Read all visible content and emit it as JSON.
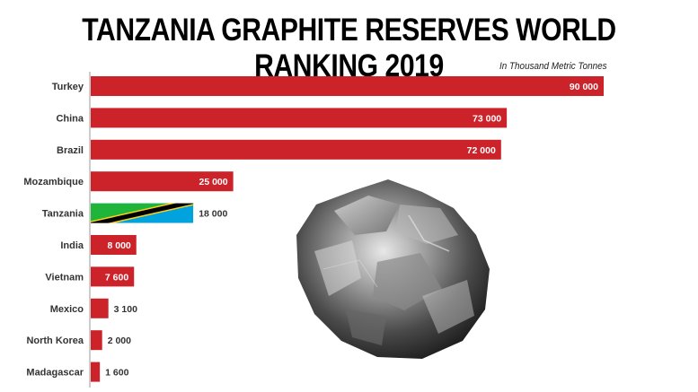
{
  "chart_data": {
    "type": "bar",
    "orientation": "horizontal",
    "title": "TANZANIA GRAPHITE RESERVES WORLD RANKING 2019",
    "unit_label": "In Thousand Metric Tonnes",
    "categories": [
      "Turkey",
      "China",
      "Brazil",
      "Mozambique",
      "Tanzania",
      "India",
      "Vietnam",
      "Mexico",
      "North Korea",
      "Madagascar"
    ],
    "values": [
      90000,
      73000,
      72000,
      25000,
      18000,
      8000,
      7600,
      3100,
      2000,
      1600
    ],
    "value_labels": [
      "90 000",
      "73 000",
      "72 000",
      "25 000",
      "18 000",
      "8 000",
      "7 600",
      "3 100",
      "2 000",
      "1 600"
    ],
    "highlight": "Tanzania",
    "bar_color": "#cc2229",
    "flag_colors": {
      "green": "#1eb53a",
      "yellow": "#fcd116",
      "black": "#000000",
      "blue": "#00a3dd"
    },
    "xlim": [
      0,
      90000
    ],
    "grid": false,
    "decoration": "graphite-rock-image"
  }
}
